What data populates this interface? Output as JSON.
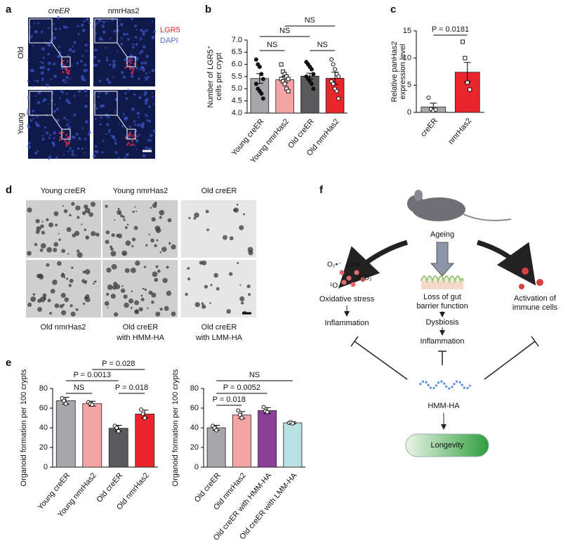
{
  "panel_labels": [
    "a",
    "b",
    "c",
    "d",
    "e",
    "f"
  ],
  "micrographs": {
    "columns": [
      "creER",
      "nmrHas2"
    ],
    "rows": [
      "Old",
      "Young"
    ],
    "stains": [
      "LGR5",
      "DAPI"
    ]
  },
  "organoid_images": {
    "top": [
      "Young creER",
      "Young nmrHas2",
      "Old creER"
    ],
    "bottom": [
      [
        "Old nmrHas2"
      ],
      [
        "Old creER",
        "with HMM-HA"
      ],
      [
        "Old creER",
        "with LMM-HA"
      ]
    ]
  },
  "chart_data": [
    {
      "type": "bar",
      "ylabel": [
        "Number of LGR5⁺",
        "cells per crypt"
      ],
      "categories": [
        "Young creER",
        "Young nmrHas2",
        "Old creER",
        "Old nmrHas2"
      ],
      "values": [
        5.42,
        5.37,
        5.52,
        5.43
      ],
      "errors": [
        0.2,
        0.13,
        0.12,
        0.25
      ],
      "colors": [
        "#a7a7ab",
        "#f4a4a4",
        "#5a5a5c",
        "#e8262b"
      ],
      "markers": [
        "filled-circle",
        "open-square",
        "filled-circle",
        "open-circle"
      ],
      "points": [
        [
          6.2,
          6.0,
          5.9,
          5.6,
          5.4,
          5.2,
          5.0,
          4.9,
          4.8,
          4.6
        ],
        [
          6.0,
          5.7,
          5.6,
          5.5,
          5.4,
          5.4,
          5.3,
          5.2,
          5.0,
          4.9
        ],
        [
          6.1,
          6.0,
          5.9,
          5.8,
          5.6,
          5.5,
          5.4,
          5.3,
          5.2,
          5.0
        ],
        [
          6.2,
          6.0,
          5.8,
          5.6,
          5.5,
          5.3,
          5.2,
          5.0,
          4.9,
          4.6
        ]
      ],
      "ylim": [
        4.0,
        7.0
      ],
      "yticks": [
        {
          "value": 4,
          "label": "4.0"
        },
        4.5,
        {
          "value": 5,
          "label": "5.0"
        },
        5.5,
        {
          "value": 6,
          "label": "6.0"
        },
        6.5,
        {
          "value": 7,
          "label": "7.0"
        }
      ],
      "annotations": [
        "NS",
        "NS",
        "NS",
        "NS"
      ]
    },
    {
      "type": "bar",
      "ylabel": [
        "Relative panHas2",
        "expression level"
      ],
      "categories": [
        "creER",
        "nmrHas2"
      ],
      "values": [
        1.0,
        7.4
      ],
      "errors": [
        0.7,
        1.8
      ],
      "colors": [
        "#a7a7ab",
        "#e8262b"
      ],
      "markers": [
        "open-circle",
        "open-square"
      ],
      "points": [
        [
          2.7,
          0.6,
          0.3,
          0.5
        ],
        [
          13,
          10,
          5.5,
          4.2
        ]
      ],
      "ylim": [
        0,
        15
      ],
      "yticks": [
        0,
        5,
        10,
        15
      ],
      "annotations": [
        "P = 0.0181"
      ]
    },
    {
      "type": "bar",
      "ylabel": [
        "Organoid formation per 100 crypts"
      ],
      "categories": [
        "Young creER",
        "Young nmrHas2",
        "Old creER",
        "Old nmrHas2"
      ],
      "values": [
        67.5,
        64.5,
        39.5,
        54
      ],
      "errors": [
        3.5,
        2.5,
        3,
        4
      ],
      "colors": [
        "#a7a7ab",
        "#f4a4a4",
        "#5a5a5c",
        "#e8262b"
      ],
      "markers": [
        "open-circle",
        "open-circle",
        "open-circle",
        "open-circle"
      ],
      "points": [
        [
          70,
          67.5,
          64.5
        ],
        [
          66,
          64.5,
          63.5
        ],
        [
          42,
          40,
          36.5
        ],
        [
          58.5,
          54,
          50
        ]
      ],
      "ylim": [
        0,
        80
      ],
      "yticks": [
        0,
        20,
        40,
        60,
        80
      ],
      "annotations": [
        "NS",
        "P = 0.0013",
        "P = 0.028",
        "P = 0.018"
      ]
    },
    {
      "type": "bar",
      "ylabel": [
        "Organoid formation per 100 crypts"
      ],
      "categories": [
        "Old creER",
        "Old nmrHas2",
        "Old creER with HMM-HA",
        "Old creER with LMM-HA"
      ],
      "values": [
        40,
        53,
        57.5,
        45
      ],
      "errors": [
        2.5,
        3.5,
        3,
        1
      ],
      "colors": [
        "#a7a7ab",
        "#f4a4a4",
        "#8b3f98",
        "#b8e1e4"
      ],
      "markers": [
        "open-circle",
        "open-circle",
        "open-circle",
        "open-circle"
      ],
      "points": [
        [
          42,
          40,
          37.5
        ],
        [
          57.5,
          53,
          50
        ],
        [
          61,
          57,
          56
        ],
        [
          45,
          45.5,
          44.5
        ]
      ],
      "ylim": [
        0,
        80
      ],
      "yticks": [
        0,
        20,
        40,
        60,
        80
      ],
      "annotations": [
        "NS",
        "P = 0.0052",
        "P = 0.018"
      ]
    }
  ],
  "diagram": {
    "ageing": "Ageing",
    "ros": [
      "O₂•⁻",
      "OH•",
      "H₂O₂",
      "¹O₂"
    ],
    "oxidative_stress": "Oxidative stress",
    "inflammation_left": "Inflammation",
    "gut_barrier": [
      "Loss of gut",
      "barrier function"
    ],
    "dysbiosis": "Dysbiosis",
    "inflammation_center": "Inflammation",
    "immune": [
      "Activation of",
      "immune cells"
    ],
    "hmm_ha": "HMM-HA",
    "longevity": "Longevity"
  }
}
